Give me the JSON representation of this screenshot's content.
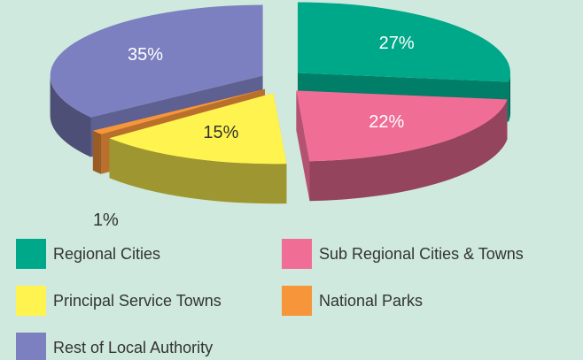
{
  "chart_data": {
    "type": "pie",
    "categories": [
      "Regional Cities",
      "Sub Regional Cities & Towns",
      "Principal Service Towns",
      "National Parks",
      "Rest of Local Authority"
    ],
    "values": [
      27,
      22,
      15,
      1,
      35
    ],
    "value_labels": [
      "27%",
      "22%",
      "15%",
      "1%",
      "35%"
    ],
    "colors": [
      "#00a88a",
      "#f06e96",
      "#fff44f",
      "#f7953a",
      "#7c80c0"
    ]
  }
}
